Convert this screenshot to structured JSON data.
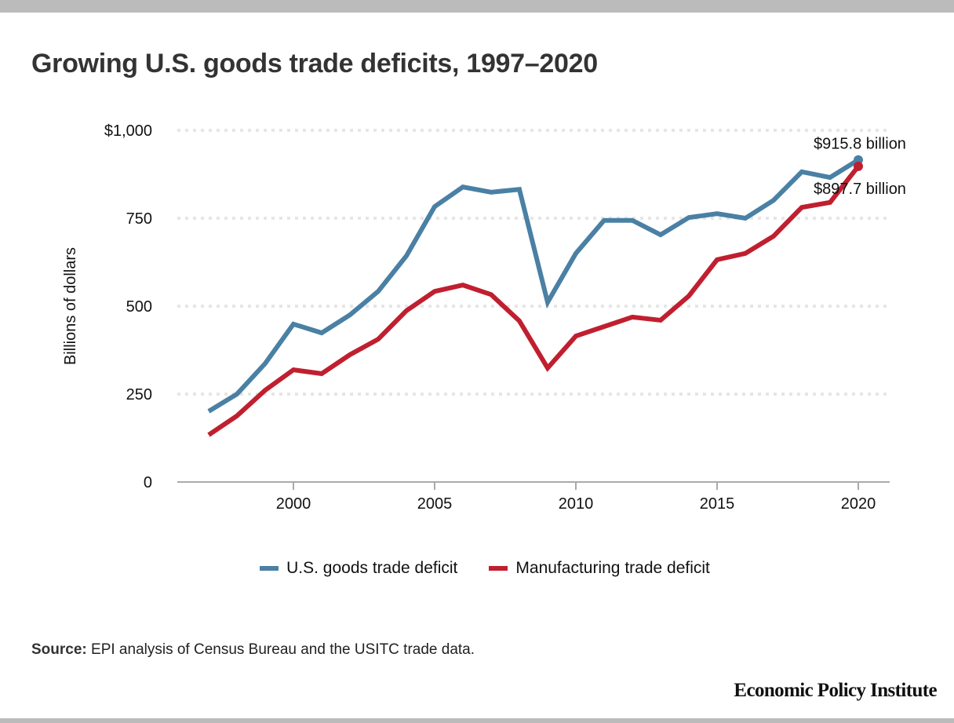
{
  "header": {
    "title": "Growing U.S. goods trade deficits, 1997–2020"
  },
  "chart_data": {
    "type": "line",
    "title": "Growing U.S. goods trade deficits, 1997–2020",
    "xlabel": "",
    "ylabel": "Billions of dollars",
    "x": [
      1997,
      1998,
      1999,
      2000,
      2001,
      2002,
      2003,
      2004,
      2005,
      2006,
      2007,
      2008,
      2009,
      2010,
      2011,
      2012,
      2013,
      2014,
      2015,
      2016,
      2017,
      2018,
      2019,
      2020
    ],
    "xlim": [
      1994,
      2021.2
    ],
    "ylim": [
      0,
      1000
    ],
    "xticks": [
      2000,
      2005,
      2010,
      2015,
      2020
    ],
    "xtick_labels": [
      "2000",
      "2005",
      "2010",
      "2015",
      "2020"
    ],
    "yticks": [
      0,
      250,
      500,
      750,
      1000
    ],
    "ytick_labels": [
      "0",
      "250",
      "500",
      "750",
      "$1,000"
    ],
    "grid": "horizontal-dotted",
    "legend_position": "bottom-center",
    "series": [
      {
        "name": "U.S. goods trade deficit",
        "color": "#4a80a4",
        "values": [
          201,
          250,
          337,
          449,
          424,
          475,
          542,
          643,
          783,
          839,
          824,
          832,
          511,
          650,
          744,
          744,
          703,
          752,
          763,
          750,
          801,
          882,
          866,
          915.8
        ],
        "end_label": "$915.8 billion"
      },
      {
        "name": "Manufacturing trade deficit",
        "color": "#c01f2f",
        "values": [
          134,
          188,
          261,
          319,
          308,
          362,
          406,
          487,
          542,
          560,
          533,
          458,
          324,
          415,
          442,
          469,
          460,
          529,
          632,
          650,
          699,
          781,
          795,
          897.7
        ],
        "end_label": "$897.7 billion"
      }
    ]
  },
  "legend": {
    "items": [
      {
        "label": "U.S. goods trade deficit",
        "color": "#4a80a4"
      },
      {
        "label": "Manufacturing trade deficit",
        "color": "#c01f2f"
      }
    ]
  },
  "footer": {
    "source_label": "Source:",
    "source_text": " EPI analysis of Census Bureau and the USITC trade data.",
    "brand": "Economic Policy Institute"
  }
}
